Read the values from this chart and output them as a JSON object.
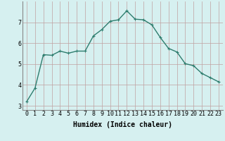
{
  "x": [
    0,
    1,
    2,
    3,
    4,
    5,
    6,
    7,
    8,
    9,
    10,
    11,
    12,
    13,
    14,
    15,
    16,
    17,
    18,
    19,
    20,
    21,
    22,
    23
  ],
  "y": [
    3.2,
    3.85,
    5.45,
    5.42,
    5.62,
    5.52,
    5.62,
    5.62,
    6.35,
    6.65,
    7.05,
    7.12,
    7.55,
    7.15,
    7.12,
    6.88,
    6.28,
    5.75,
    5.58,
    5.02,
    4.92,
    4.55,
    4.35,
    4.15
  ],
  "line_color": "#2e7d6e",
  "marker": "+",
  "markersize": 3,
  "linewidth": 1.0,
  "bg_color": "#d6f0f0",
  "grid_color": "#c0a0a0",
  "xlabel": "Humidex (Indice chaleur)",
  "xlim": [
    -0.5,
    23.5
  ],
  "ylim": [
    2.8,
    8.0
  ],
  "yticks": [
    3,
    4,
    5,
    6,
    7
  ],
  "xtick_labels": [
    "0",
    "1",
    "2",
    "3",
    "4",
    "5",
    "6",
    "7",
    "8",
    "9",
    "10",
    "11",
    "12",
    "13",
    "14",
    "15",
    "16",
    "17",
    "18",
    "19",
    "20",
    "21",
    "22",
    "23"
  ],
  "xlabel_fontsize": 7,
  "tick_fontsize": 6
}
